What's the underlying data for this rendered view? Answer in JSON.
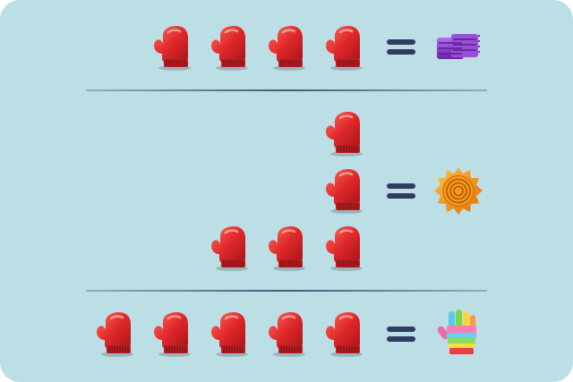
{
  "puzzle": {
    "rows": [
      {
        "mitten_count": 4,
        "equals": "=",
        "result_icon": "purple-scarf-icon"
      },
      {
        "mitten_count": 5,
        "equals": "=",
        "result_icon": "orange-sun-badge-icon"
      },
      {
        "mitten_count": 5,
        "equals": "=",
        "result_icon": "rainbow-glove-icon"
      }
    ],
    "tile_icon": "red-mitten-icon"
  },
  "colors": {
    "background": "#bcdee5",
    "mitten": "#d42a2a",
    "equals": "#2e3d63",
    "scarf": "#8a3fc4",
    "sun": "#f08a12"
  }
}
